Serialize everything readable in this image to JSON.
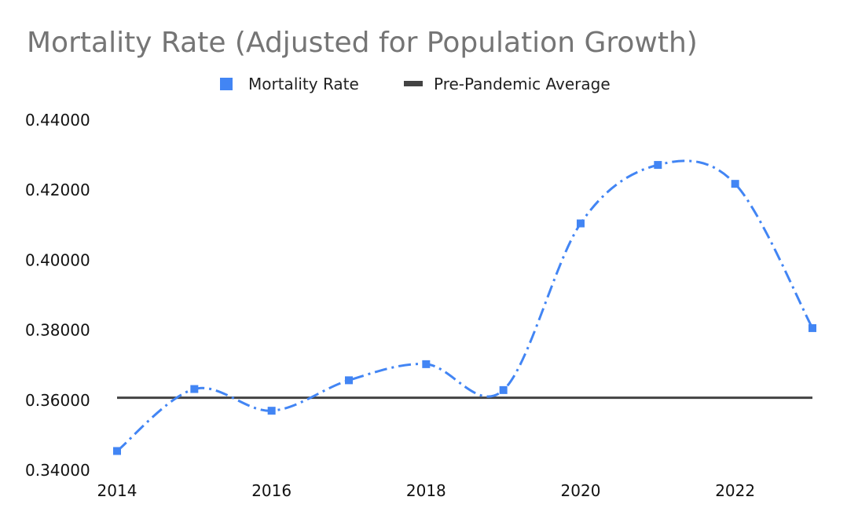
{
  "chart_data": {
    "type": "line",
    "title": "Mortality Rate (Adjusted for Population Growth)",
    "xlabel": "",
    "ylabel": "",
    "x": [
      2014,
      2015,
      2016,
      2017,
      2018,
      2019,
      2020,
      2021,
      2022,
      2023
    ],
    "xlim": [
      2014,
      2023
    ],
    "ylim": [
      0.34,
      0.44
    ],
    "x_ticks": [
      "2014",
      "2016",
      "2018",
      "2020",
      "2022"
    ],
    "x_tick_values": [
      2014,
      2016,
      2018,
      2020,
      2022
    ],
    "y_ticks": [
      "0.34000",
      "0.36000",
      "0.38000",
      "0.40000",
      "0.42000",
      "0.44000"
    ],
    "y_tick_values": [
      0.34,
      0.36,
      0.38,
      0.4,
      0.42,
      0.44
    ],
    "series": [
      {
        "name": "Mortality Rate",
        "values": [
          0.3455,
          0.3632,
          0.357,
          0.3657,
          0.3703,
          0.3629,
          0.4105,
          0.4272,
          0.4218,
          0.3806
        ],
        "color": "#4285f4",
        "line_style": "dash-dot",
        "marker": "square"
      },
      {
        "name": "Pre-Pandemic Average",
        "values": [
          0.3607,
          0.3607,
          0.3607,
          0.3607,
          0.3607,
          0.3607,
          0.3607,
          0.3607,
          0.3607,
          0.3607
        ],
        "color": "#434343",
        "line_style": "solid"
      }
    ],
    "grid": false,
    "legend_position": "top"
  }
}
